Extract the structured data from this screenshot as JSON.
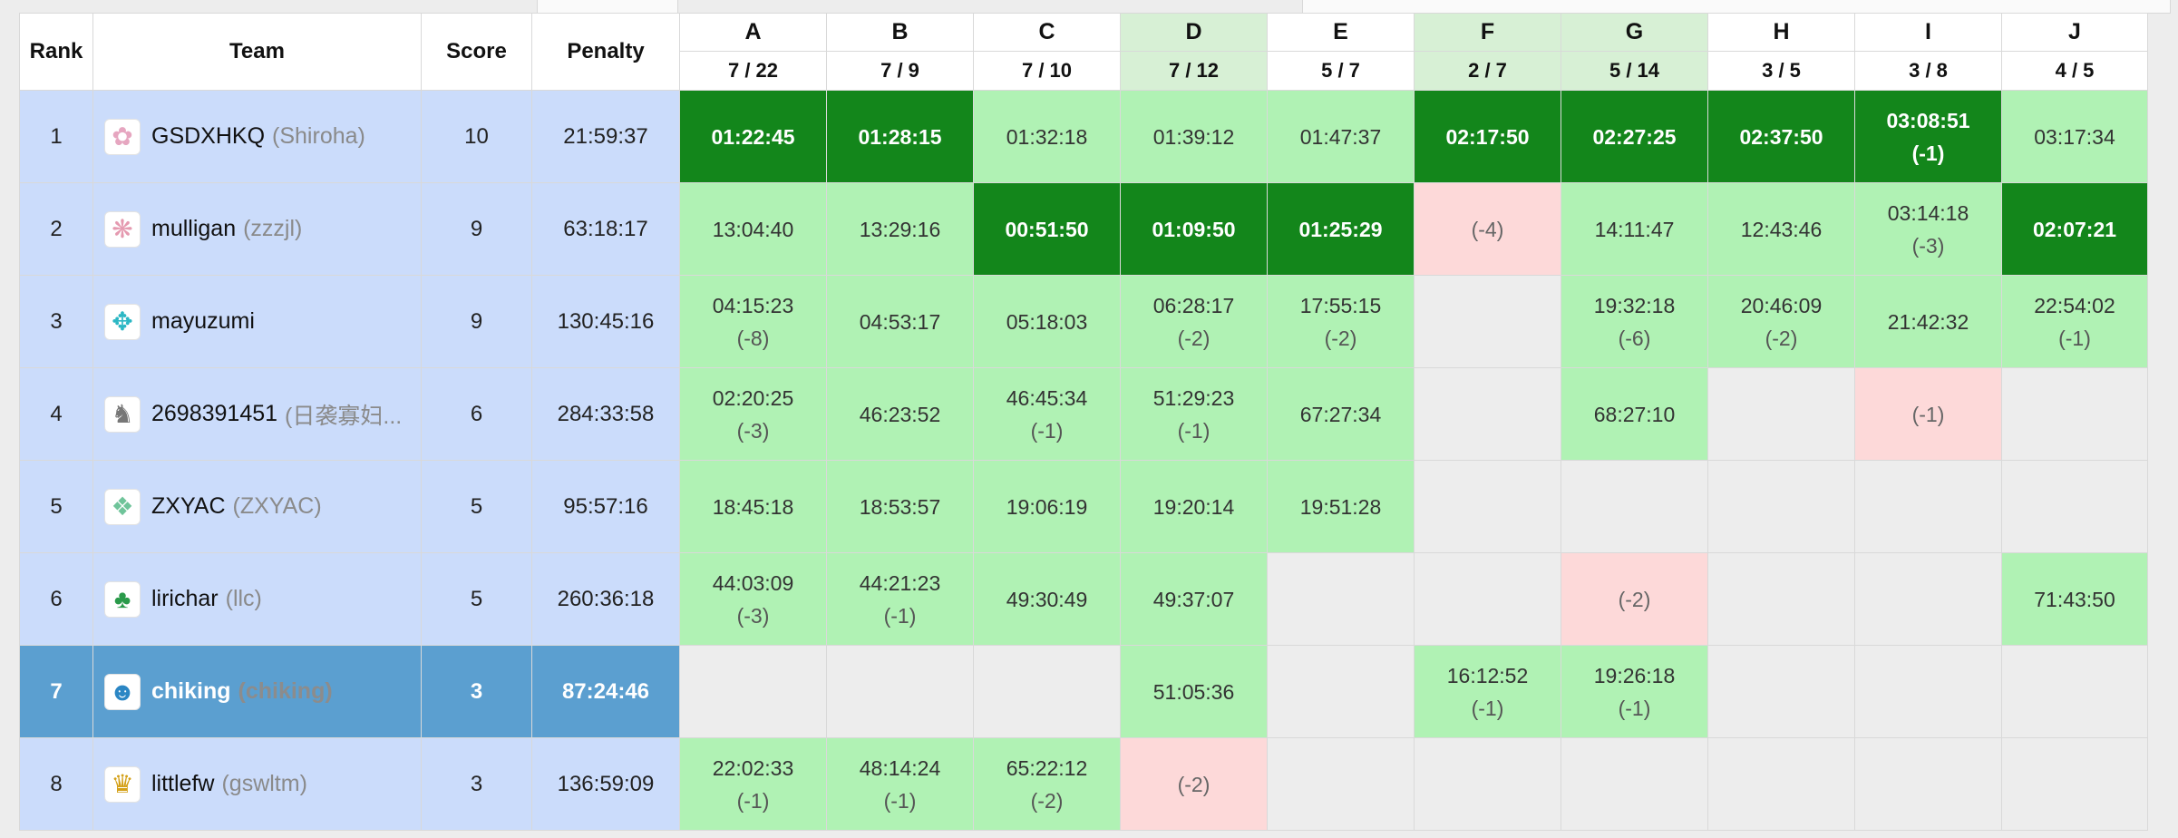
{
  "header": {
    "rank": "Rank",
    "team": "Team",
    "score": "Score",
    "penalty": "Penalty"
  },
  "colors": {
    "accepted": "#b0f2b4",
    "first_solve": "#13861b",
    "rejected": "#fdd9d9",
    "row_info": "#cbdcfb",
    "current_team": "#5b9fd0",
    "column_highlight": "#d7f0d5"
  },
  "problems": [
    {
      "label": "A",
      "stat": "7 / 22",
      "highlight": false
    },
    {
      "label": "B",
      "stat": "7 / 9",
      "highlight": false
    },
    {
      "label": "C",
      "stat": "7 / 10",
      "highlight": false
    },
    {
      "label": "D",
      "stat": "7 / 12",
      "highlight": true
    },
    {
      "label": "E",
      "stat": "5 / 7",
      "highlight": false
    },
    {
      "label": "F",
      "stat": "2 / 7",
      "highlight": true
    },
    {
      "label": "G",
      "stat": "5 / 14",
      "highlight": true
    },
    {
      "label": "H",
      "stat": "3 / 5",
      "highlight": false
    },
    {
      "label": "I",
      "stat": "3 / 8",
      "highlight": false
    },
    {
      "label": "J",
      "stat": "4 / 5",
      "highlight": false
    }
  ],
  "rows": [
    {
      "rank": "1",
      "team": "GSDXHKQ",
      "sub": "(Shiroha)",
      "score": "10",
      "penalty": "21:59:37",
      "avatar": "flower-avatar-icon",
      "avatar_glyph": "✿",
      "avatar_color": "#e6a6c0",
      "current": false,
      "cells": [
        {
          "status": "first",
          "time": "01:22:45",
          "tries": ""
        },
        {
          "status": "first",
          "time": "01:28:15",
          "tries": ""
        },
        {
          "status": "ac",
          "time": "01:32:18",
          "tries": ""
        },
        {
          "status": "ac",
          "time": "01:39:12",
          "tries": ""
        },
        {
          "status": "ac",
          "time": "01:47:37",
          "tries": ""
        },
        {
          "status": "first",
          "time": "02:17:50",
          "tries": ""
        },
        {
          "status": "first",
          "time": "02:27:25",
          "tries": ""
        },
        {
          "status": "first",
          "time": "02:37:50",
          "tries": ""
        },
        {
          "status": "first",
          "time": "03:08:51",
          "tries": "(-1)"
        },
        {
          "status": "ac",
          "time": "03:17:34",
          "tries": ""
        }
      ]
    },
    {
      "rank": "2",
      "team": "mulligan",
      "sub": "(zzzjl)",
      "score": "9",
      "penalty": "63:18:17",
      "avatar": "pattern-avatar-icon",
      "avatar_glyph": "❋",
      "avatar_color": "#e59ab0",
      "current": false,
      "cells": [
        {
          "status": "ac",
          "time": "13:04:40",
          "tries": ""
        },
        {
          "status": "ac",
          "time": "13:29:16",
          "tries": ""
        },
        {
          "status": "first",
          "time": "00:51:50",
          "tries": ""
        },
        {
          "status": "first",
          "time": "01:09:50",
          "tries": ""
        },
        {
          "status": "first",
          "time": "01:25:29",
          "tries": ""
        },
        {
          "status": "wa",
          "time": "",
          "tries": "(-4)"
        },
        {
          "status": "ac",
          "time": "14:11:47",
          "tries": ""
        },
        {
          "status": "ac",
          "time": "12:43:46",
          "tries": ""
        },
        {
          "status": "ac",
          "time": "03:14:18",
          "tries": "(-3)"
        },
        {
          "status": "first",
          "time": "02:07:21",
          "tries": ""
        }
      ]
    },
    {
      "rank": "3",
      "team": "mayuzumi",
      "sub": "",
      "score": "9",
      "penalty": "130:45:16",
      "avatar": "pattern-avatar-icon",
      "avatar_glyph": "✥",
      "avatar_color": "#2bb7c4",
      "current": false,
      "cells": [
        {
          "status": "ac",
          "time": "04:15:23",
          "tries": "(-8)"
        },
        {
          "status": "ac",
          "time": "04:53:17",
          "tries": ""
        },
        {
          "status": "ac",
          "time": "05:18:03",
          "tries": ""
        },
        {
          "status": "ac",
          "time": "06:28:17",
          "tries": "(-2)"
        },
        {
          "status": "ac",
          "time": "17:55:15",
          "tries": "(-2)"
        },
        {
          "status": "none",
          "time": "",
          "tries": ""
        },
        {
          "status": "ac",
          "time": "19:32:18",
          "tries": "(-6)"
        },
        {
          "status": "ac",
          "time": "20:46:09",
          "tries": "(-2)"
        },
        {
          "status": "ac",
          "time": "21:42:32",
          "tries": ""
        },
        {
          "status": "ac",
          "time": "22:54:02",
          "tries": "(-1)"
        }
      ]
    },
    {
      "rank": "4",
      "team": "2698391451",
      "sub": "(日袭寡妇...",
      "score": "6",
      "penalty": "284:33:58",
      "avatar": "character-avatar-icon",
      "avatar_glyph": "♞",
      "avatar_color": "#777777",
      "current": false,
      "cells": [
        {
          "status": "ac",
          "time": "02:20:25",
          "tries": "(-3)"
        },
        {
          "status": "ac",
          "time": "46:23:52",
          "tries": ""
        },
        {
          "status": "ac",
          "time": "46:45:34",
          "tries": "(-1)"
        },
        {
          "status": "ac",
          "time": "51:29:23",
          "tries": "(-1)"
        },
        {
          "status": "ac",
          "time": "67:27:34",
          "tries": ""
        },
        {
          "status": "none",
          "time": "",
          "tries": ""
        },
        {
          "status": "ac",
          "time": "68:27:10",
          "tries": ""
        },
        {
          "status": "none",
          "time": "",
          "tries": ""
        },
        {
          "status": "wa",
          "time": "",
          "tries": "(-1)"
        },
        {
          "status": "none",
          "time": "",
          "tries": ""
        }
      ]
    },
    {
      "rank": "5",
      "team": "ZXYAC",
      "sub": "(ZXYAC)",
      "score": "5",
      "penalty": "95:57:16",
      "avatar": "pattern-avatar-icon",
      "avatar_glyph": "❖",
      "avatar_color": "#6fc49a",
      "current": false,
      "cells": [
        {
          "status": "ac",
          "time": "18:45:18",
          "tries": ""
        },
        {
          "status": "ac",
          "time": "18:53:57",
          "tries": ""
        },
        {
          "status": "ac",
          "time": "19:06:19",
          "tries": ""
        },
        {
          "status": "ac",
          "time": "19:20:14",
          "tries": ""
        },
        {
          "status": "ac",
          "time": "19:51:28",
          "tries": ""
        },
        {
          "status": "none",
          "time": "",
          "tries": ""
        },
        {
          "status": "none",
          "time": "",
          "tries": ""
        },
        {
          "status": "none",
          "time": "",
          "tries": ""
        },
        {
          "status": "none",
          "time": "",
          "tries": ""
        },
        {
          "status": "none",
          "time": "",
          "tries": ""
        }
      ]
    },
    {
      "rank": "6",
      "team": "lirichar",
      "sub": "(llc)",
      "score": "5",
      "penalty": "260:36:18",
      "avatar": "character-avatar-icon",
      "avatar_glyph": "♣",
      "avatar_color": "#2a9a4a",
      "current": false,
      "cells": [
        {
          "status": "ac",
          "time": "44:03:09",
          "tries": "(-3)"
        },
        {
          "status": "ac",
          "time": "44:21:23",
          "tries": "(-1)"
        },
        {
          "status": "ac",
          "time": "49:30:49",
          "tries": ""
        },
        {
          "status": "ac",
          "time": "49:37:07",
          "tries": ""
        },
        {
          "status": "none",
          "time": "",
          "tries": ""
        },
        {
          "status": "none",
          "time": "",
          "tries": ""
        },
        {
          "status": "wa",
          "time": "",
          "tries": "(-2)"
        },
        {
          "status": "none",
          "time": "",
          "tries": ""
        },
        {
          "status": "none",
          "time": "",
          "tries": ""
        },
        {
          "status": "ac",
          "time": "71:43:50",
          "tries": ""
        }
      ]
    },
    {
      "rank": "7",
      "team": "chiking",
      "sub": "(chiking)",
      "score": "3",
      "penalty": "87:24:46",
      "avatar": "character-avatar-icon",
      "avatar_glyph": "☻",
      "avatar_color": "#2b86c4",
      "current": true,
      "cells": [
        {
          "status": "none",
          "time": "",
          "tries": ""
        },
        {
          "status": "none",
          "time": "",
          "tries": ""
        },
        {
          "status": "none",
          "time": "",
          "tries": ""
        },
        {
          "status": "ac",
          "time": "51:05:36",
          "tries": ""
        },
        {
          "status": "none",
          "time": "",
          "tries": ""
        },
        {
          "status": "ac",
          "time": "16:12:52",
          "tries": "(-1)"
        },
        {
          "status": "ac",
          "time": "19:26:18",
          "tries": "(-1)"
        },
        {
          "status": "none",
          "time": "",
          "tries": ""
        },
        {
          "status": "none",
          "time": "",
          "tries": ""
        },
        {
          "status": "none",
          "time": "",
          "tries": ""
        }
      ]
    },
    {
      "rank": "8",
      "team": "littlefw",
      "sub": "(gswltm)",
      "score": "3",
      "penalty": "136:59:09",
      "avatar": "character-avatar-icon",
      "avatar_glyph": "♛",
      "avatar_color": "#d4a017",
      "current": false,
      "cells": [
        {
          "status": "ac",
          "time": "22:02:33",
          "tries": "(-1)"
        },
        {
          "status": "ac",
          "time": "48:14:24",
          "tries": "(-1)"
        },
        {
          "status": "ac",
          "time": "65:22:12",
          "tries": "(-2)"
        },
        {
          "status": "wa",
          "time": "",
          "tries": "(-2)"
        },
        {
          "status": "none",
          "time": "",
          "tries": ""
        },
        {
          "status": "none",
          "time": "",
          "tries": ""
        },
        {
          "status": "none",
          "time": "",
          "tries": ""
        },
        {
          "status": "none",
          "time": "",
          "tries": ""
        },
        {
          "status": "none",
          "time": "",
          "tries": ""
        },
        {
          "status": "none",
          "time": "",
          "tries": ""
        }
      ]
    }
  ]
}
